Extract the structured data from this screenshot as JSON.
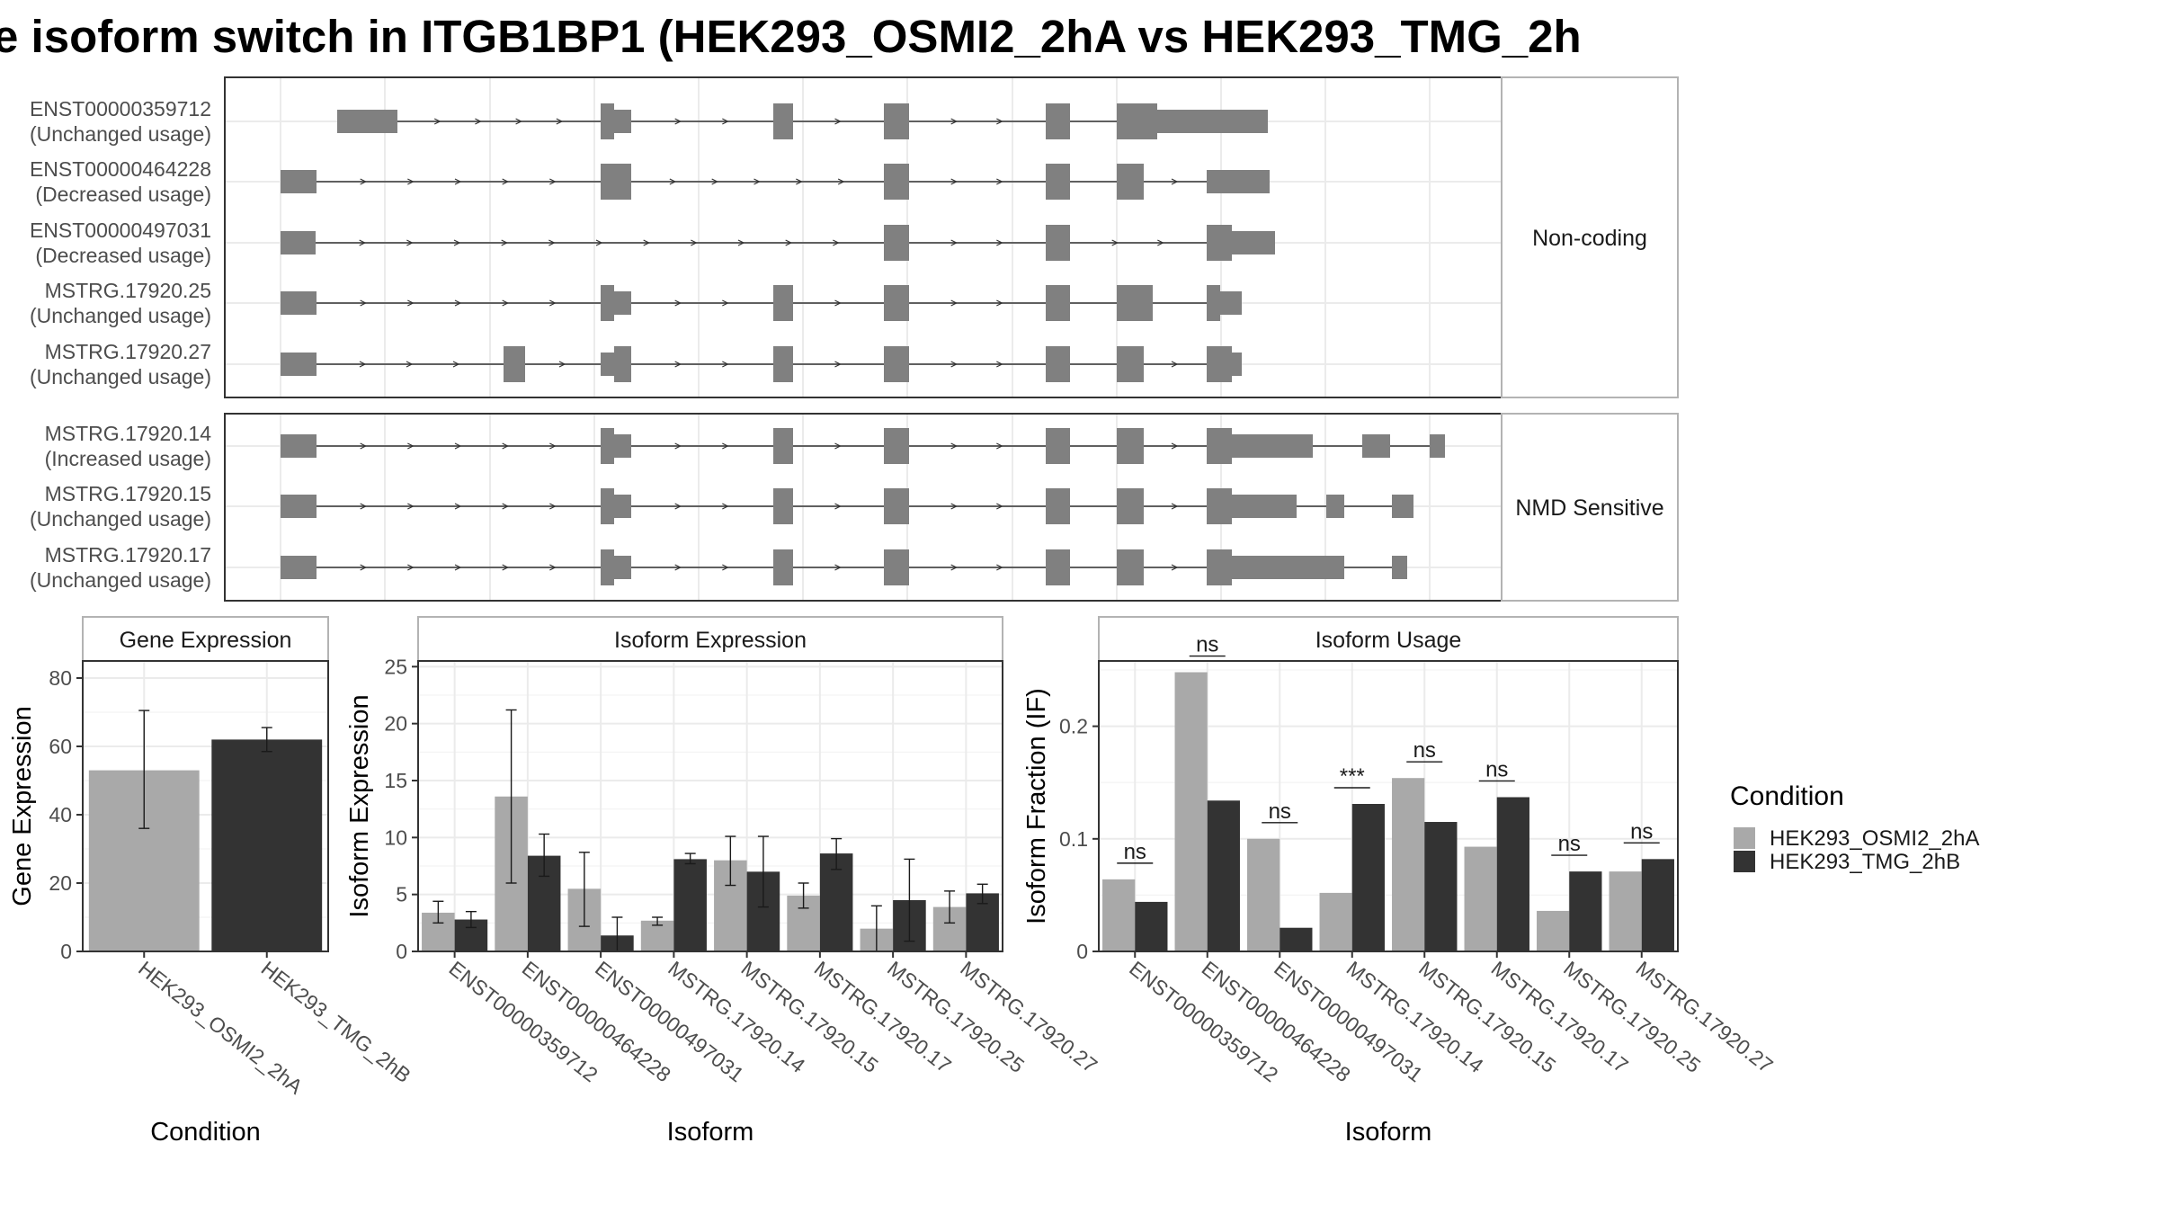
{
  "title": "e isoform switch in ITGB1BP1 (HEK293_OSMI2_2hA vs HEK293_TMG_2h",
  "colors": {
    "cond1": "#a9a9a9",
    "cond2": "#333333",
    "exon": "#808080",
    "panel_border": "#333333",
    "strip_border": "#b3b3b3",
    "grid": "#ebebeb"
  },
  "structure": {
    "groups": [
      {
        "label": "Non-coding",
        "transcripts": [
          {
            "id": "ENST00000359712",
            "usage": "(Unchanged usage)"
          },
          {
            "id": "ENST00000464228",
            "usage": "(Decreased usage)"
          },
          {
            "id": "ENST00000497031",
            "usage": "(Decreased usage)"
          },
          {
            "id": "MSTRG.17920.25",
            "usage": "(Unchanged usage)"
          },
          {
            "id": "MSTRG.17920.27",
            "usage": "(Unchanged usage)"
          }
        ]
      },
      {
        "label": "NMD Sensitive",
        "transcripts": [
          {
            "id": "MSTRG.17920.14",
            "usage": "(Increased usage)"
          },
          {
            "id": "MSTRG.17920.15",
            "usage": "(Unchanged usage)"
          },
          {
            "id": "MSTRG.17920.17",
            "usage": "(Unchanged usage)"
          }
        ]
      }
    ]
  },
  "legend": {
    "title": "Condition",
    "items": [
      "HEK293_OSMI2_2hA",
      "HEK293_TMG_2hB"
    ]
  },
  "chart_data": [
    {
      "type": "bar",
      "strip": "Gene Expression",
      "xlabel": "Condition",
      "ylabel": "Gene Expression",
      "ylim": [
        0,
        85
      ],
      "yticks": [
        0,
        20,
        40,
        60,
        80
      ],
      "categories": [
        "HEK293_OSMI2_2hA",
        "HEK293_TMG_2hB"
      ],
      "values": [
        53,
        62
      ],
      "error_low": [
        36,
        58.5
      ],
      "error_high": [
        70.5,
        65.5
      ]
    },
    {
      "type": "bar",
      "strip": "Isoform Expression",
      "xlabel": "Isoform",
      "ylabel": "Isoform Expression",
      "ylim": [
        0,
        25.5
      ],
      "yticks": [
        0,
        5,
        10,
        15,
        20,
        25
      ],
      "categories": [
        "ENST00000359712",
        "ENST00000464228",
        "ENST00000497031",
        "MSTRG.17920.14",
        "MSTRG.17920.15",
        "MSTRG.17920.17",
        "MSTRG.17920.25",
        "MSTRG.17920.27"
      ],
      "series": [
        {
          "name": "HEK293_OSMI2_2hA",
          "values": [
            3.4,
            13.6,
            5.5,
            2.7,
            8.0,
            4.9,
            2.0,
            3.9
          ],
          "error_low": [
            2.5,
            6.0,
            2.2,
            2.3,
            5.8,
            3.8,
            0.0,
            2.5
          ],
          "error_high": [
            4.4,
            21.2,
            8.7,
            3.0,
            10.1,
            6.0,
            4.0,
            5.3
          ]
        },
        {
          "name": "HEK293_TMG_2hB",
          "values": [
            2.8,
            8.4,
            1.4,
            8.1,
            7.0,
            8.6,
            4.5,
            5.1
          ],
          "error_low": [
            2.1,
            6.6,
            0.0,
            7.7,
            3.9,
            7.2,
            0.9,
            4.2
          ],
          "error_high": [
            3.5,
            10.3,
            3.0,
            8.6,
            10.1,
            9.9,
            8.1,
            5.9
          ]
        }
      ]
    },
    {
      "type": "bar",
      "strip": "Isoform Usage",
      "xlabel": "Isoform",
      "ylabel": "Isoform Fraction (IF)",
      "ylim": [
        0,
        0.258
      ],
      "yticks": [
        0.0,
        0.1,
        0.2
      ],
      "categories": [
        "ENST00000359712",
        "ENST00000464228",
        "ENST00000497031",
        "MSTRG.17920.14",
        "MSTRG.17920.15",
        "MSTRG.17920.17",
        "MSTRG.17920.25",
        "MSTRG.17920.27"
      ],
      "series": [
        {
          "name": "HEK293_OSMI2_2hA",
          "values": [
            0.064,
            0.248,
            0.1,
            0.052,
            0.154,
            0.093,
            0.036,
            0.071
          ]
        },
        {
          "name": "HEK293_TMG_2hB",
          "values": [
            0.044,
            0.134,
            0.021,
            0.131,
            0.115,
            0.137,
            0.071,
            0.082
          ]
        }
      ],
      "significance": [
        "ns",
        "ns",
        "ns",
        "***",
        "ns",
        "ns",
        "ns",
        "ns"
      ]
    }
  ]
}
